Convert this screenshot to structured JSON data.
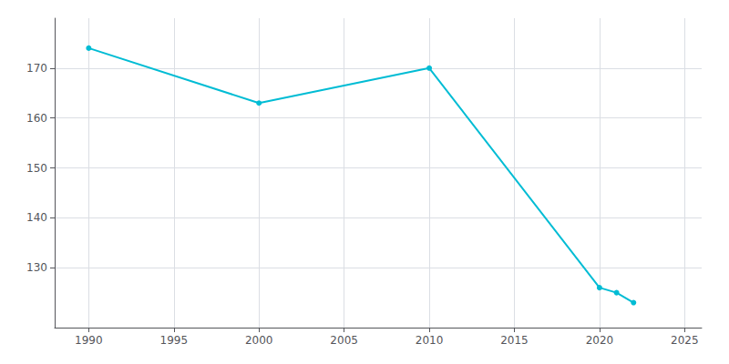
{
  "chart_data": {
    "type": "line",
    "x": [
      1990,
      2000,
      2010,
      2020,
      2021,
      2022
    ],
    "values": [
      174,
      163,
      170,
      126,
      125,
      123
    ],
    "color": "#00bcd4",
    "marker": "circle",
    "xlim": [
      1988,
      2026
    ],
    "ylim": [
      118,
      180
    ],
    "xticks": [
      1990,
      1995,
      2000,
      2005,
      2010,
      2015,
      2020,
      2025
    ],
    "yticks": [
      130,
      140,
      150,
      160,
      170
    ],
    "grid": true
  }
}
